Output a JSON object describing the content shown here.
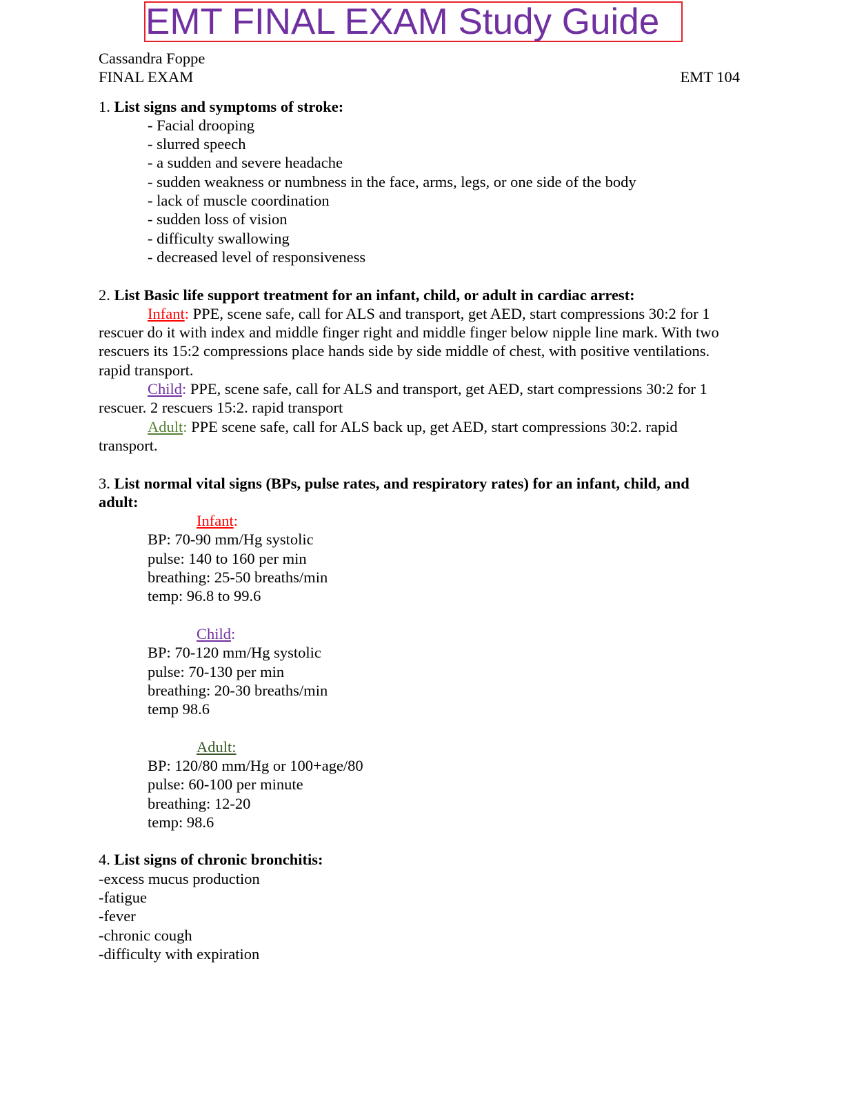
{
  "title": "EMT FINAL EXAM Study Guide",
  "author": "Cassandra Foppe",
  "exam_label": "FINAL EXAM",
  "course": "EMT 104",
  "colors": {
    "title": "#7030a0",
    "title_border": "#e8202a",
    "infant": "#ff0000",
    "child": "#7030a0",
    "adult_q2": "#548235",
    "adult_q3": "#375623"
  },
  "q1": {
    "number": "1.",
    "question": "List signs and symptoms of stroke:",
    "items": [
      "- Facial drooping",
      "- slurred speech",
      "- a sudden and severe headache",
      "- sudden weakness or numbness in the face, arms, legs, or one side of the body",
      "- lack of muscle coordination",
      "- sudden loss of vision",
      "- difficulty swallowing",
      "- decreased level of responsiveness"
    ]
  },
  "q2": {
    "number": "2.",
    "question": "List Basic life support treatment for an infant, child, or adult in cardiac arrest:",
    "infant_label": "Infant",
    "infant_text": "PPE, scene safe, call for ALS and transport, get AED, start compressions 30:2 for 1 rescuer do it with index and middle finger right and middle finger below nipple line mark. With two rescuers its 15:2 compressions place hands side by side middle of chest, with positive ventilations. rapid transport.",
    "child_label": "Child",
    "child_text": "PPE, scene safe, call for ALS and transport, get AED, start compressions 30:2 for 1 rescuer. 2 rescuers 15:2. rapid transport",
    "adult_label": "Adult",
    "adult_text": "PPE scene safe, call for ALS back up, get AED, start compressions 30:2. rapid transport."
  },
  "q3": {
    "number": "3.",
    "question_line1": "List normal vital signs (BPs, pulse rates, and respiratory rates) for an infant, child, and",
    "question_line2": "adult:",
    "infant": {
      "label": "Infant",
      "bp": "BP: 70-90 mm/Hg systolic",
      "pulse": "pulse: 140 to 160 per min",
      "breathing": "breathing: 25-50 breaths/min",
      "temp": "temp: 96.8 to 99.6"
    },
    "child": {
      "label": "Child",
      "bp": "BP: 70-120 mm/Hg systolic",
      "pulse": "pulse: 70-130 per min",
      "breathing": "breathing: 20-30 breaths/min",
      "temp": "temp 98.6"
    },
    "adult": {
      "label": "Adult:",
      "bp": "BP: 120/80 mm/Hg or 100+age/80",
      "pulse": "pulse: 60-100 per minute",
      "breathing": "breathing: 12-20",
      "temp": "temp: 98.6"
    }
  },
  "q4": {
    "number": "4.",
    "question": "List signs of chronic bronchitis:",
    "items": [
      "-excess mucus production",
      "-fatigue",
      "-fever",
      "-chronic cough",
      "-difficulty with expiration"
    ]
  }
}
